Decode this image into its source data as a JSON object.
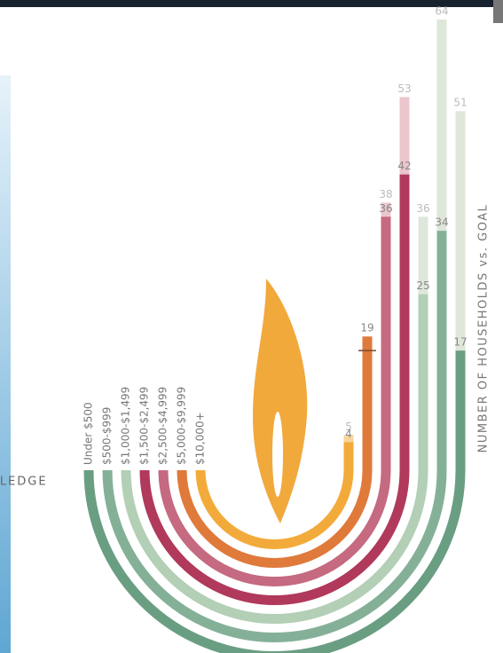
{
  "chart_data": {
    "type": "arc-bar",
    "y_label": "NUMBER OF HOUSEHOLDS vs. GOAL",
    "x_label": "PLEDGE",
    "categories": [
      "Under $500",
      "$500-$999",
      "$1,000-$1,499",
      "$1,500-$2,499",
      "$2,500-$4,999",
      "$5,000-$9,999",
      "$10,000+"
    ],
    "series": [
      {
        "values": [
          17,
          34,
          25,
          42,
          36,
          19,
          4
        ],
        "colors": [
          "#6a9e82",
          "#85b098",
          "#b3cfb6",
          "#b0395c",
          "#c56a80",
          "#df7a3b",
          "#f2ab3a"
        ]
      },
      {
        "values": [
          51,
          64,
          36,
          53,
          38,
          17,
          5
        ],
        "colors": [
          "#dfe7da",
          "#dfe7da",
          "#dfe7da",
          "#ebc6cd",
          "#ebc6cd",
          "#7a4a30",
          "#f7d59a"
        ]
      }
    ],
    "ylim": [
      0,
      64
    ]
  }
}
